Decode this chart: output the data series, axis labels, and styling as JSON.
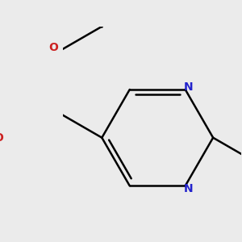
{
  "background_color": "#ebebeb",
  "bond_color": "#000000",
  "n_color": "#2222cc",
  "o_color": "#cc2222",
  "bond_width": 1.8,
  "figsize": [
    3.0,
    3.0
  ],
  "dpi": 100,
  "xlim": [
    -1.4,
    1.8
  ],
  "ylim": [
    -1.6,
    1.8
  ]
}
